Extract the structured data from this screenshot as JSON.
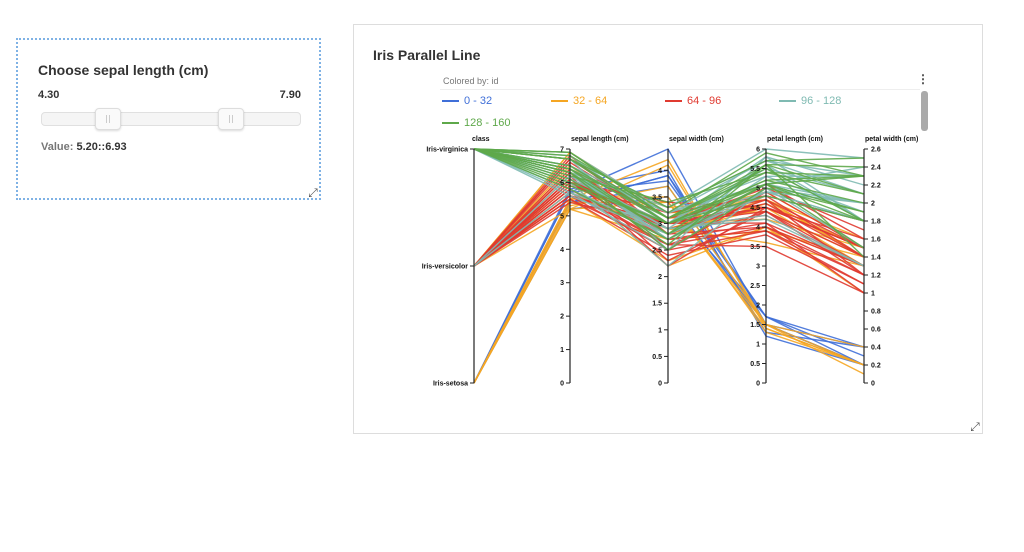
{
  "slider": {
    "title": "Choose sepal length (cm)",
    "min": 4.3,
    "max": 7.9,
    "min_label": "4.30",
    "max_label": "7.90",
    "low": 5.2,
    "high": 6.93,
    "value_label": "Value:",
    "value_text": "5.20::6.93"
  },
  "chart": {
    "title": "Iris Parallel Line",
    "colored_by": "Colored by: id"
  },
  "chart_data": {
    "type": "parallel-coordinates",
    "axes": [
      {
        "name": "class",
        "categories": [
          "Iris-virginica",
          "Iris-versicolor",
          "Iris-setosa"
        ]
      },
      {
        "name": "sepal length (cm)",
        "range": [
          0,
          7
        ],
        "ticks": [
          "0",
          "1",
          "2",
          "3",
          "4",
          "5",
          "6",
          "7"
        ]
      },
      {
        "name": "sepal width (cm)",
        "range": [
          0,
          4.4
        ],
        "ticks": [
          "0",
          "0.5",
          "1",
          "1.5",
          "2",
          "2.5",
          "3",
          "3.5",
          "4"
        ]
      },
      {
        "name": "petal length (cm)",
        "range": [
          0,
          6
        ],
        "ticks": [
          "0",
          "0.5",
          "1",
          "1.5",
          "2",
          "2.5",
          "3",
          "3.5",
          "4",
          "4.5",
          "5",
          "5.5",
          "6"
        ]
      },
      {
        "name": "petal width (cm)",
        "range": [
          0,
          2.6
        ],
        "ticks": [
          "0",
          "0.2",
          "0.4",
          "0.6",
          "0.8",
          "1",
          "1.2",
          "1.4",
          "1.6",
          "1.8",
          "2",
          "2.2",
          "2.4",
          "2.6"
        ]
      }
    ],
    "series": [
      {
        "name": "0 - 32",
        "color": "#3f6fd8",
        "rows": [
          [
            "Iris-setosa",
            5.4,
            3.9,
            1.7,
            0.4
          ],
          [
            "Iris-setosa",
            5.4,
            3.7,
            1.5,
            0.2
          ],
          [
            "Iris-setosa",
            5.8,
            4.0,
            1.2,
            0.2
          ],
          [
            "Iris-setosa",
            5.7,
            4.4,
            1.5,
            0.4
          ],
          [
            "Iris-setosa",
            5.4,
            3.9,
            1.3,
            0.4
          ],
          [
            "Iris-setosa",
            5.7,
            3.8,
            1.7,
            0.3
          ],
          [
            "Iris-setosa",
            5.4,
            3.4,
            1.7,
            0.2
          ],
          [
            "Iris-setosa",
            5.2,
            3.5,
            1.5,
            0.2
          ]
        ]
      },
      {
        "name": "32 - 64",
        "color": "#f5a623",
        "rows": [
          [
            "Iris-setosa",
            5.2,
            3.4,
            1.4,
            0.2
          ],
          [
            "Iris-setosa",
            5.4,
            3.4,
            1.5,
            0.4
          ],
          [
            "Iris-setosa",
            5.2,
            4.1,
            1.5,
            0.1
          ],
          [
            "Iris-setosa",
            5.5,
            4.2,
            1.4,
            0.2
          ],
          [
            "Iris-setosa",
            5.5,
            3.5,
            1.3,
            0.2
          ],
          [
            "Iris-setosa",
            5.3,
            3.7,
            1.5,
            0.2
          ],
          [
            "Iris-versicolor",
            6.9,
            3.2,
            4.7,
            1.4
          ],
          [
            "Iris-versicolor",
            6.4,
            3.2,
            4.5,
            1.5
          ],
          [
            "Iris-versicolor",
            6.9,
            3.1,
            4.9,
            1.5
          ],
          [
            "Iris-versicolor",
            5.5,
            2.3,
            4.0,
            1.3
          ],
          [
            "Iris-versicolor",
            6.5,
            2.8,
            4.6,
            1.5
          ],
          [
            "Iris-versicolor",
            5.7,
            2.8,
            4.5,
            1.3
          ],
          [
            "Iris-versicolor",
            6.3,
            3.3,
            4.7,
            1.6
          ],
          [
            "Iris-versicolor",
            5.2,
            2.7,
            3.9,
            1.4
          ],
          [
            "Iris-versicolor",
            5.9,
            3.0,
            4.2,
            1.5
          ],
          [
            "Iris-versicolor",
            6.0,
            2.2,
            4.0,
            1.0
          ],
          [
            "Iris-versicolor",
            6.1,
            2.9,
            4.7,
            1.4
          ],
          [
            "Iris-versicolor",
            5.6,
            2.9,
            3.6,
            1.3
          ],
          [
            "Iris-versicolor",
            6.7,
            3.1,
            4.4,
            1.4
          ]
        ]
      },
      {
        "name": "64 - 96",
        "color": "#e03a30",
        "rows": [
          [
            "Iris-versicolor",
            5.6,
            3.0,
            4.5,
            1.5
          ],
          [
            "Iris-versicolor",
            5.8,
            2.7,
            4.1,
            1.0
          ],
          [
            "Iris-versicolor",
            6.2,
            2.2,
            4.5,
            1.5
          ],
          [
            "Iris-versicolor",
            5.6,
            2.5,
            3.9,
            1.1
          ],
          [
            "Iris-versicolor",
            5.9,
            3.2,
            4.8,
            1.8
          ],
          [
            "Iris-versicolor",
            6.1,
            2.8,
            4.0,
            1.3
          ],
          [
            "Iris-versicolor",
            6.3,
            2.5,
            4.9,
            1.5
          ],
          [
            "Iris-versicolor",
            6.1,
            2.8,
            4.7,
            1.2
          ],
          [
            "Iris-versicolor",
            6.4,
            2.9,
            4.3,
            1.3
          ],
          [
            "Iris-versicolor",
            6.6,
            3.0,
            4.4,
            1.4
          ],
          [
            "Iris-versicolor",
            6.8,
            2.8,
            4.8,
            1.4
          ],
          [
            "Iris-versicolor",
            6.7,
            3.0,
            5.0,
            1.7
          ],
          [
            "Iris-versicolor",
            6.0,
            2.9,
            4.5,
            1.5
          ],
          [
            "Iris-versicolor",
            5.7,
            2.6,
            3.5,
            1.0
          ],
          [
            "Iris-versicolor",
            5.5,
            2.4,
            3.8,
            1.1
          ],
          [
            "Iris-versicolor",
            5.8,
            2.7,
            3.9,
            1.2
          ],
          [
            "Iris-versicolor",
            6.0,
            2.7,
            5.1,
            1.6
          ],
          [
            "Iris-versicolor",
            5.4,
            3.0,
            4.5,
            1.5
          ],
          [
            "Iris-versicolor",
            6.0,
            3.4,
            4.5,
            1.6
          ],
          [
            "Iris-versicolor",
            6.7,
            3.1,
            4.7,
            1.5
          ],
          [
            "Iris-versicolor",
            6.3,
            2.3,
            4.4,
            1.3
          ],
          [
            "Iris-versicolor",
            5.6,
            3.0,
            4.1,
            1.3
          ],
          [
            "Iris-versicolor",
            5.5,
            2.6,
            4.4,
            1.2
          ],
          [
            "Iris-versicolor",
            6.1,
            3.0,
            4.6,
            1.4
          ],
          [
            "Iris-versicolor",
            5.8,
            2.6,
            4.0,
            1.2
          ]
        ]
      },
      {
        "name": "96 - 128",
        "color": "#7fbab2",
        "rows": [
          [
            "Iris-versicolor",
            5.7,
            2.9,
            4.2,
            1.3
          ],
          [
            "Iris-versicolor",
            6.2,
            2.9,
            4.3,
            1.3
          ],
          [
            "Iris-virginica",
            6.3,
            3.3,
            6.0,
            2.5
          ],
          [
            "Iris-virginica",
            5.8,
            2.7,
            5.1,
            1.9
          ],
          [
            "Iris-virginica",
            6.3,
            2.9,
            5.6,
            1.8
          ],
          [
            "Iris-virginica",
            6.5,
            3.0,
            5.8,
            2.2
          ],
          [
            "Iris-virginica",
            6.7,
            2.5,
            5.8,
            1.8
          ],
          [
            "Iris-virginica",
            6.5,
            3.2,
            5.1,
            2.0
          ],
          [
            "Iris-virginica",
            6.4,
            2.7,
            5.3,
            1.9
          ],
          [
            "Iris-virginica",
            6.8,
            3.0,
            5.5,
            2.1
          ],
          [
            "Iris-virginica",
            5.7,
            2.5,
            5.0,
            2.0
          ],
          [
            "Iris-virginica",
            5.8,
            2.8,
            5.1,
            2.4
          ],
          [
            "Iris-virginica",
            6.4,
            3.2,
            5.3,
            2.3
          ],
          [
            "Iris-virginica",
            6.5,
            3.0,
            5.5,
            1.8
          ],
          [
            "Iris-virginica",
            6.0,
            2.2,
            5.0,
            1.5
          ],
          [
            "Iris-virginica",
            6.9,
            3.2,
            5.7,
            2.3
          ],
          [
            "Iris-virginica",
            5.6,
            2.8,
            4.9,
            2.0
          ],
          [
            "Iris-virginica",
            6.3,
            2.7,
            4.9,
            1.8
          ],
          [
            "Iris-virginica",
            6.7,
            3.3,
            5.7,
            2.1
          ],
          [
            "Iris-virginica",
            6.2,
            2.8,
            4.8,
            1.8
          ],
          [
            "Iris-virginica",
            6.1,
            3.0,
            4.9,
            1.8
          ]
        ]
      },
      {
        "name": "128 - 160",
        "color": "#5ea84a",
        "rows": [
          [
            "Iris-virginica",
            6.4,
            2.8,
            5.6,
            2.1
          ],
          [
            "Iris-virginica",
            6.3,
            2.8,
            5.1,
            1.5
          ],
          [
            "Iris-virginica",
            6.1,
            2.6,
            5.6,
            1.4
          ],
          [
            "Iris-virginica",
            6.4,
            3.1,
            5.5,
            1.8
          ],
          [
            "Iris-virginica",
            6.0,
            3.0,
            4.8,
            1.8
          ],
          [
            "Iris-virginica",
            6.9,
            3.1,
            5.4,
            2.1
          ],
          [
            "Iris-virginica",
            6.7,
            3.1,
            5.6,
            2.4
          ],
          [
            "Iris-virginica",
            6.9,
            3.1,
            5.1,
            2.3
          ],
          [
            "Iris-virginica",
            5.8,
            2.7,
            5.1,
            1.9
          ],
          [
            "Iris-virginica",
            6.8,
            3.2,
            5.9,
            2.3
          ],
          [
            "Iris-virginica",
            6.7,
            3.3,
            5.7,
            2.5
          ],
          [
            "Iris-virginica",
            6.7,
            3.0,
            5.2,
            2.3
          ],
          [
            "Iris-virginica",
            6.3,
            2.5,
            5.0,
            1.9
          ],
          [
            "Iris-virginica",
            6.5,
            3.0,
            5.2,
            2.0
          ],
          [
            "Iris-virginica",
            6.2,
            3.4,
            5.4,
            2.3
          ],
          [
            "Iris-virginica",
            5.9,
            3.0,
            5.1,
            1.8
          ]
        ]
      }
    ]
  }
}
